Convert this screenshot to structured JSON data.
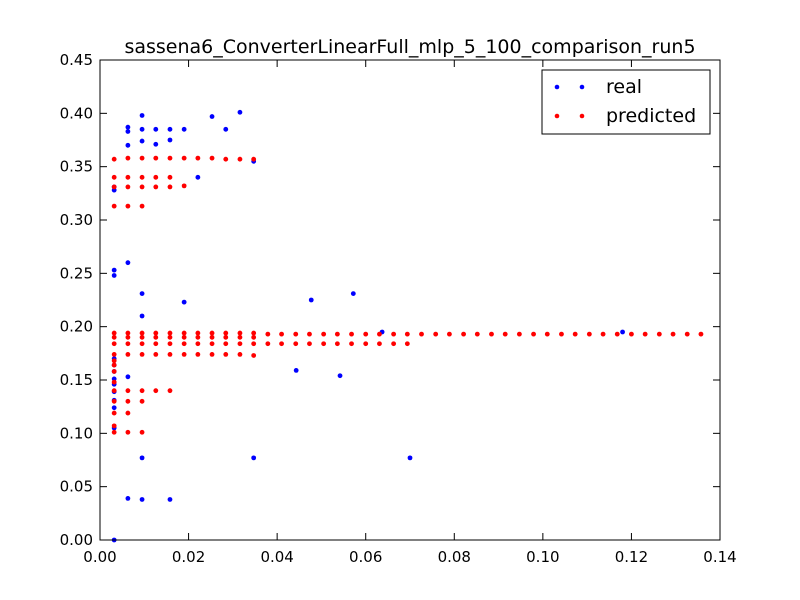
{
  "chart_data": {
    "type": "scatter",
    "title": "sassena6_ConverterLinearFull_mlp_5_100_comparison_run5",
    "xlabel": "",
    "ylabel": "",
    "xlim": [
      0.0,
      0.14
    ],
    "ylim": [
      0.0,
      0.45
    ],
    "xticks": [
      "0.00",
      "0.02",
      "0.04",
      "0.06",
      "0.08",
      "0.10",
      "0.12",
      "0.14"
    ],
    "yticks": [
      "0.00",
      "0.05",
      "0.10",
      "0.15",
      "0.20",
      "0.25",
      "0.30",
      "0.35",
      "0.40",
      "0.45"
    ],
    "legend_position": "top-right",
    "series": [
      {
        "name": "real",
        "color": "#0000ff",
        "points": [
          [
            0.0032,
            0.0
          ],
          [
            0.0032,
            0.105
          ],
          [
            0.0032,
            0.124
          ],
          [
            0.0032,
            0.131
          ],
          [
            0.0032,
            0.139
          ],
          [
            0.0032,
            0.146
          ],
          [
            0.0032,
            0.151
          ],
          [
            0.0032,
            0.158
          ],
          [
            0.0032,
            0.164
          ],
          [
            0.0032,
            0.17
          ],
          [
            0.0032,
            0.248
          ],
          [
            0.0032,
            0.253
          ],
          [
            0.0032,
            0.328
          ],
          [
            0.0032,
            0.331
          ],
          [
            0.0063,
            0.039
          ],
          [
            0.0063,
            0.153
          ],
          [
            0.0063,
            0.26
          ],
          [
            0.0063,
            0.37
          ],
          [
            0.0063,
            0.383
          ],
          [
            0.0063,
            0.387
          ],
          [
            0.0095,
            0.038
          ],
          [
            0.0095,
            0.077
          ],
          [
            0.0095,
            0.21
          ],
          [
            0.0095,
            0.231
          ],
          [
            0.0095,
            0.374
          ],
          [
            0.0095,
            0.385
          ],
          [
            0.0095,
            0.398
          ],
          [
            0.0126,
            0.371
          ],
          [
            0.0126,
            0.385
          ],
          [
            0.0158,
            0.038
          ],
          [
            0.0158,
            0.375
          ],
          [
            0.0158,
            0.385
          ],
          [
            0.019,
            0.223
          ],
          [
            0.019,
            0.385
          ],
          [
            0.0221,
            0.34
          ],
          [
            0.0253,
            0.397
          ],
          [
            0.0284,
            0.385
          ],
          [
            0.0316,
            0.401
          ],
          [
            0.0347,
            0.077
          ],
          [
            0.0347,
            0.355
          ],
          [
            0.0443,
            0.159
          ],
          [
            0.0477,
            0.225
          ],
          [
            0.0542,
            0.154
          ],
          [
            0.0572,
            0.231
          ],
          [
            0.0637,
            0.195
          ],
          [
            0.07,
            0.077
          ],
          [
            0.118,
            0.195
          ]
        ]
      },
      {
        "name": "predicted",
        "color": "#ff0000",
        "points": [
          [
            0.0032,
            0.101
          ],
          [
            0.0032,
            0.107
          ],
          [
            0.0032,
            0.119
          ],
          [
            0.0032,
            0.13
          ],
          [
            0.0032,
            0.14
          ],
          [
            0.0032,
            0.148
          ],
          [
            0.0032,
            0.158
          ],
          [
            0.0032,
            0.164
          ],
          [
            0.0032,
            0.168
          ],
          [
            0.0032,
            0.174
          ],
          [
            0.0032,
            0.184
          ],
          [
            0.0032,
            0.19
          ],
          [
            0.0032,
            0.194
          ],
          [
            0.0032,
            0.313
          ],
          [
            0.0032,
            0.331
          ],
          [
            0.0032,
            0.34
          ],
          [
            0.0032,
            0.357
          ],
          [
            0.0063,
            0.101
          ],
          [
            0.0063,
            0.119
          ],
          [
            0.0063,
            0.13
          ],
          [
            0.0063,
            0.14
          ],
          [
            0.0063,
            0.174
          ],
          [
            0.0063,
            0.184
          ],
          [
            0.0063,
            0.19
          ],
          [
            0.0063,
            0.194
          ],
          [
            0.0063,
            0.313
          ],
          [
            0.0063,
            0.331
          ],
          [
            0.0063,
            0.34
          ],
          [
            0.0063,
            0.358
          ],
          [
            0.0095,
            0.101
          ],
          [
            0.0095,
            0.13
          ],
          [
            0.0095,
            0.14
          ],
          [
            0.0095,
            0.174
          ],
          [
            0.0095,
            0.184
          ],
          [
            0.0095,
            0.19
          ],
          [
            0.0095,
            0.194
          ],
          [
            0.0095,
            0.313
          ],
          [
            0.0095,
            0.331
          ],
          [
            0.0095,
            0.34
          ],
          [
            0.0095,
            0.358
          ],
          [
            0.0126,
            0.14
          ],
          [
            0.0126,
            0.174
          ],
          [
            0.0126,
            0.184
          ],
          [
            0.0126,
            0.19
          ],
          [
            0.0126,
            0.194
          ],
          [
            0.0126,
            0.331
          ],
          [
            0.0126,
            0.34
          ],
          [
            0.0126,
            0.358
          ],
          [
            0.0158,
            0.14
          ],
          [
            0.0158,
            0.174
          ],
          [
            0.0158,
            0.184
          ],
          [
            0.0158,
            0.19
          ],
          [
            0.0158,
            0.194
          ],
          [
            0.0158,
            0.331
          ],
          [
            0.0158,
            0.34
          ],
          [
            0.0158,
            0.358
          ],
          [
            0.019,
            0.174
          ],
          [
            0.019,
            0.184
          ],
          [
            0.019,
            0.19
          ],
          [
            0.019,
            0.194
          ],
          [
            0.019,
            0.332
          ],
          [
            0.019,
            0.358
          ],
          [
            0.0221,
            0.174
          ],
          [
            0.0221,
            0.184
          ],
          [
            0.0221,
            0.19
          ],
          [
            0.0221,
            0.194
          ],
          [
            0.0221,
            0.358
          ],
          [
            0.0253,
            0.174
          ],
          [
            0.0253,
            0.184
          ],
          [
            0.0253,
            0.19
          ],
          [
            0.0253,
            0.194
          ],
          [
            0.0253,
            0.358
          ],
          [
            0.0284,
            0.174
          ],
          [
            0.0284,
            0.184
          ],
          [
            0.0284,
            0.19
          ],
          [
            0.0284,
            0.194
          ],
          [
            0.0284,
            0.357
          ],
          [
            0.0316,
            0.174
          ],
          [
            0.0316,
            0.184
          ],
          [
            0.0316,
            0.19
          ],
          [
            0.0316,
            0.194
          ],
          [
            0.0316,
            0.357
          ],
          [
            0.0347,
            0.173
          ],
          [
            0.0347,
            0.184
          ],
          [
            0.0347,
            0.19
          ],
          [
            0.0347,
            0.194
          ],
          [
            0.0347,
            0.357
          ],
          [
            0.0379,
            0.184
          ],
          [
            0.0379,
            0.193
          ],
          [
            0.041,
            0.184
          ],
          [
            0.041,
            0.193
          ],
          [
            0.0442,
            0.184
          ],
          [
            0.0442,
            0.193
          ],
          [
            0.0473,
            0.184
          ],
          [
            0.0473,
            0.193
          ],
          [
            0.0505,
            0.184
          ],
          [
            0.0505,
            0.193
          ],
          [
            0.0536,
            0.184
          ],
          [
            0.0536,
            0.193
          ],
          [
            0.0568,
            0.184
          ],
          [
            0.0568,
            0.193
          ],
          [
            0.06,
            0.184
          ],
          [
            0.06,
            0.193
          ],
          [
            0.0631,
            0.184
          ],
          [
            0.0631,
            0.193
          ],
          [
            0.0663,
            0.184
          ],
          [
            0.0663,
            0.193
          ],
          [
            0.0694,
            0.184
          ],
          [
            0.0694,
            0.193
          ],
          [
            0.0726,
            0.193
          ],
          [
            0.0758,
            0.193
          ],
          [
            0.0789,
            0.193
          ],
          [
            0.0821,
            0.193
          ],
          [
            0.0852,
            0.193
          ],
          [
            0.0884,
            0.193
          ],
          [
            0.0915,
            0.193
          ],
          [
            0.0947,
            0.193
          ],
          [
            0.0979,
            0.193
          ],
          [
            0.101,
            0.193
          ],
          [
            0.1042,
            0.193
          ],
          [
            0.1073,
            0.193
          ],
          [
            0.1105,
            0.193
          ],
          [
            0.1136,
            0.193
          ],
          [
            0.1168,
            0.193
          ],
          [
            0.12,
            0.193
          ],
          [
            0.1231,
            0.193
          ],
          [
            0.1263,
            0.193
          ],
          [
            0.1294,
            0.193
          ],
          [
            0.1326,
            0.193
          ],
          [
            0.1357,
            0.193
          ]
        ]
      }
    ]
  }
}
